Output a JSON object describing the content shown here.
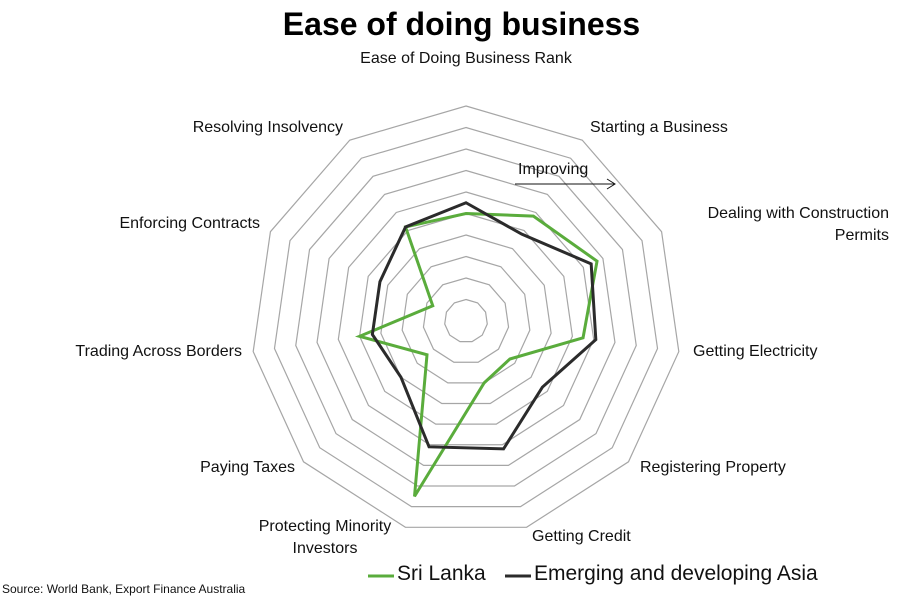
{
  "chart_data": {
    "type": "radar",
    "title": "Ease of doing business",
    "categories": [
      "Ease of Doing Business Rank",
      "Starting a Business",
      "Dealing with Construction Permits",
      "Getting Electricity",
      "Registering Property",
      "Getting Credit",
      "Protecting Minority Investors",
      "Paying Taxes",
      "Trading Across Borders",
      "Enforcing Contracts",
      "Resolving Insolvency"
    ],
    "series": [
      {
        "name": "Sri Lanka",
        "color": "#5aac3c",
        "values": [
          5.0,
          5.8,
          6.7,
          5.5,
          2.7,
          3.0,
          8.5,
          2.4,
          5.0,
          1.7,
          5.2
        ]
      },
      {
        "name": "Emerging and developing Asia",
        "color": "#2b2b2b",
        "values": [
          5.5,
          4.8,
          6.4,
          6.1,
          4.7,
          6.2,
          6.1,
          4.0,
          4.4,
          4.4,
          5.2
        ]
      }
    ],
    "ylim": [
      0,
      10
    ],
    "yticks": [
      1,
      2,
      3,
      4,
      5,
      6,
      7,
      8,
      9,
      10
    ],
    "annotation": "Improving",
    "source": "Source: World Bank, Export Finance Australia"
  }
}
